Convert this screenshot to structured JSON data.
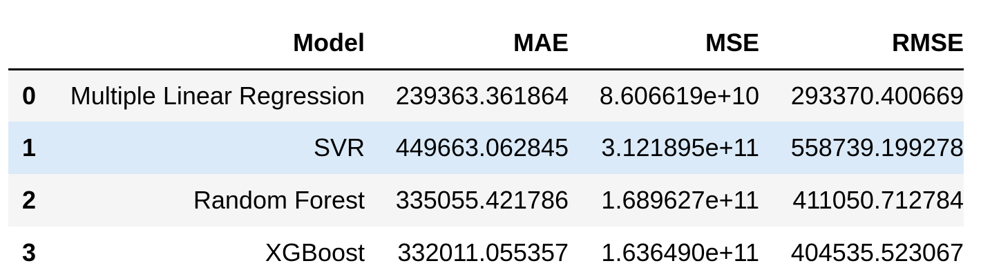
{
  "table": {
    "columns": [
      "",
      "Model",
      "MAE",
      "MSE",
      "RMSE"
    ],
    "rows": [
      {
        "index": "0",
        "model": "Multiple Linear Regression",
        "mae": "239363.361864",
        "mse": "8.606619e+10",
        "rmse": "293370.400669"
      },
      {
        "index": "1",
        "model": "SVR",
        "mae": "449663.062845",
        "mse": "3.121895e+11",
        "rmse": "558739.199278"
      },
      {
        "index": "2",
        "model": "Random Forest",
        "mae": "335055.421786",
        "mse": "1.689627e+11",
        "rmse": "411050.712784"
      },
      {
        "index": "3",
        "model": "XGBoost",
        "mae": "332011.055357",
        "mse": "1.636490e+11",
        "rmse": "404535.523067"
      }
    ],
    "colors": {
      "odd_row": "#f5f5f5",
      "even_row": "#ffffff",
      "hover_row": "#dbeaf8",
      "header_rule": "#000000"
    }
  }
}
